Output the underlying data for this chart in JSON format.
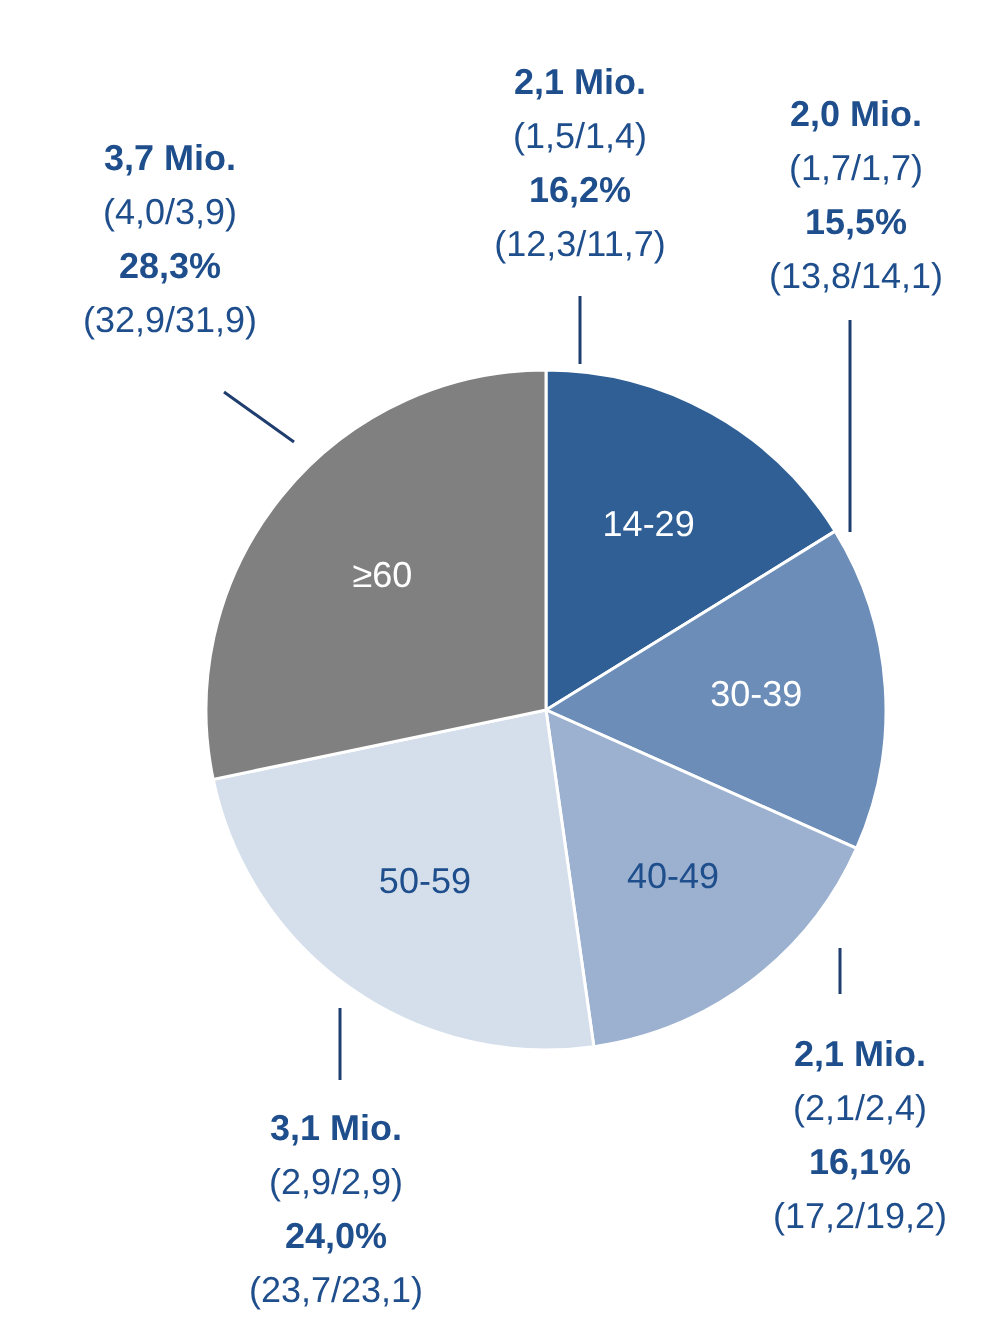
{
  "chart_data": {
    "type": "pie",
    "categories": [
      "14-29",
      "30-39",
      "40-49",
      "50-59",
      "≥60"
    ],
    "values": [
      16.2,
      15.5,
      16.1,
      24.0,
      28.3
    ],
    "colors": [
      "#2f5f95",
      "#6b8db8",
      "#9bb1cf",
      "#d5dfeb",
      "#808080"
    ],
    "value_labels": [
      "2,1 Mio.\n(1,5/1,4)\n16,2%\n(12,3/11,7)",
      "2,0 Mio.\n(1,7/1,7)\n15,5%\n(13,8/14,1)",
      "2,1 Mio.\n(2,1/2,4)\n16,1%\n(17,2/19,2)",
      "3,1 Mio.\n(2,9/2,9)\n24,0%\n(23,7/23,1)",
      "3,7 Mio.\n(4,0/3,9)\n28,3%\n(32,9/31,9)"
    ]
  }
}
